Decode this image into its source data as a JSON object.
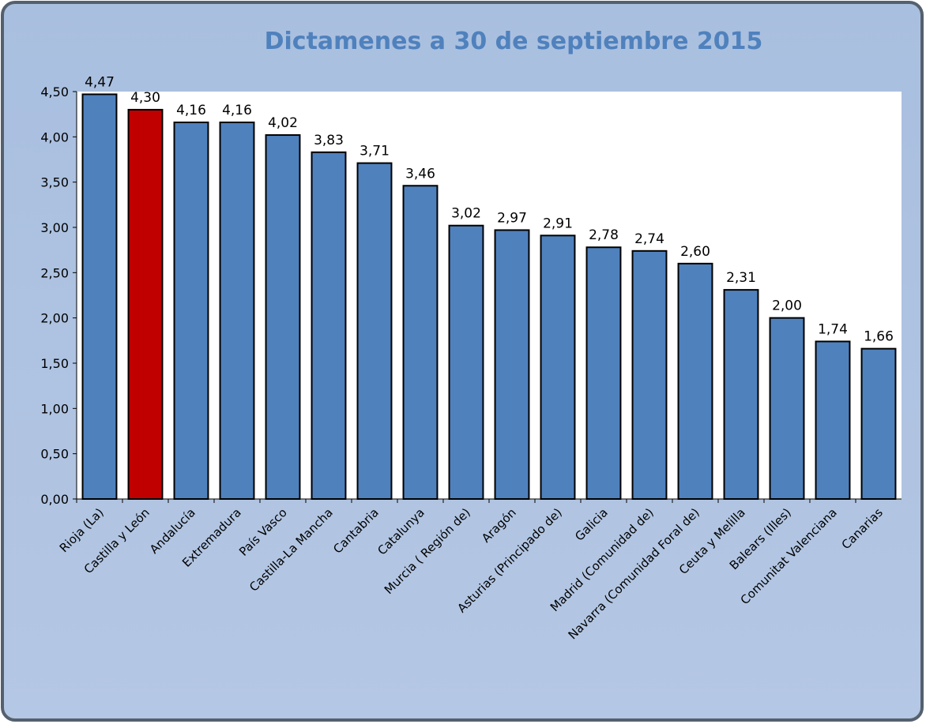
{
  "chart_data": {
    "type": "bar",
    "title": "Dictamenes a 30 de septiembre 2015",
    "categories": [
      "Rioja (La)",
      "Castilla y León",
      "Andalucía",
      "Extremadura",
      "País Vasco",
      "Castilla-La Mancha",
      "Cantabria",
      "Catalunya",
      "Murcia ( Región de)",
      "Aragón",
      "Asturias (Principado de)",
      "Galicia",
      "Madrid (Comunidad de)",
      "Navarra (Comunidad Foral de)",
      "Ceuta y Melilla",
      "Balears (Illes)",
      "Comunitat Valenciana",
      "Canarias"
    ],
    "values": [
      4.47,
      4.3,
      4.16,
      4.16,
      4.02,
      3.83,
      3.71,
      3.46,
      3.02,
      2.97,
      2.91,
      2.78,
      2.74,
      2.6,
      2.31,
      2.0,
      1.74,
      1.66
    ],
    "value_labels": [
      "4,47",
      "4,30",
      "4,16",
      "4,16",
      "4,02",
      "3,83",
      "3,71",
      "3,46",
      "3,02",
      "2,97",
      "2,91",
      "2,78",
      "2,74",
      "2,60",
      "2,31",
      "2,00",
      "1,74",
      "1,66"
    ],
    "colors": [
      "#4f81bd",
      "#c00000",
      "#4f81bd",
      "#4f81bd",
      "#4f81bd",
      "#4f81bd",
      "#4f81bd",
      "#4f81bd",
      "#4f81bd",
      "#4f81bd",
      "#4f81bd",
      "#4f81bd",
      "#4f81bd",
      "#4f81bd",
      "#4f81bd",
      "#4f81bd",
      "#4f81bd",
      "#4f81bd"
    ],
    "ylim": [
      0,
      4.5
    ],
    "yticks": [
      {
        "value": 0,
        "label": "0,00"
      },
      {
        "value": 0.5,
        "label": "0,50"
      },
      {
        "value": 1,
        "label": "1,00"
      },
      {
        "value": 1.5,
        "label": "1,50"
      },
      {
        "value": 2,
        "label": "2,00"
      },
      {
        "value": 2.5,
        "label": "2,50"
      },
      {
        "value": 3,
        "label": "3,00"
      },
      {
        "value": 3.5,
        "label": "3,50"
      },
      {
        "value": 4,
        "label": "4,00"
      },
      {
        "value": 4.5,
        "label": "4,50"
      }
    ],
    "grid": false
  }
}
